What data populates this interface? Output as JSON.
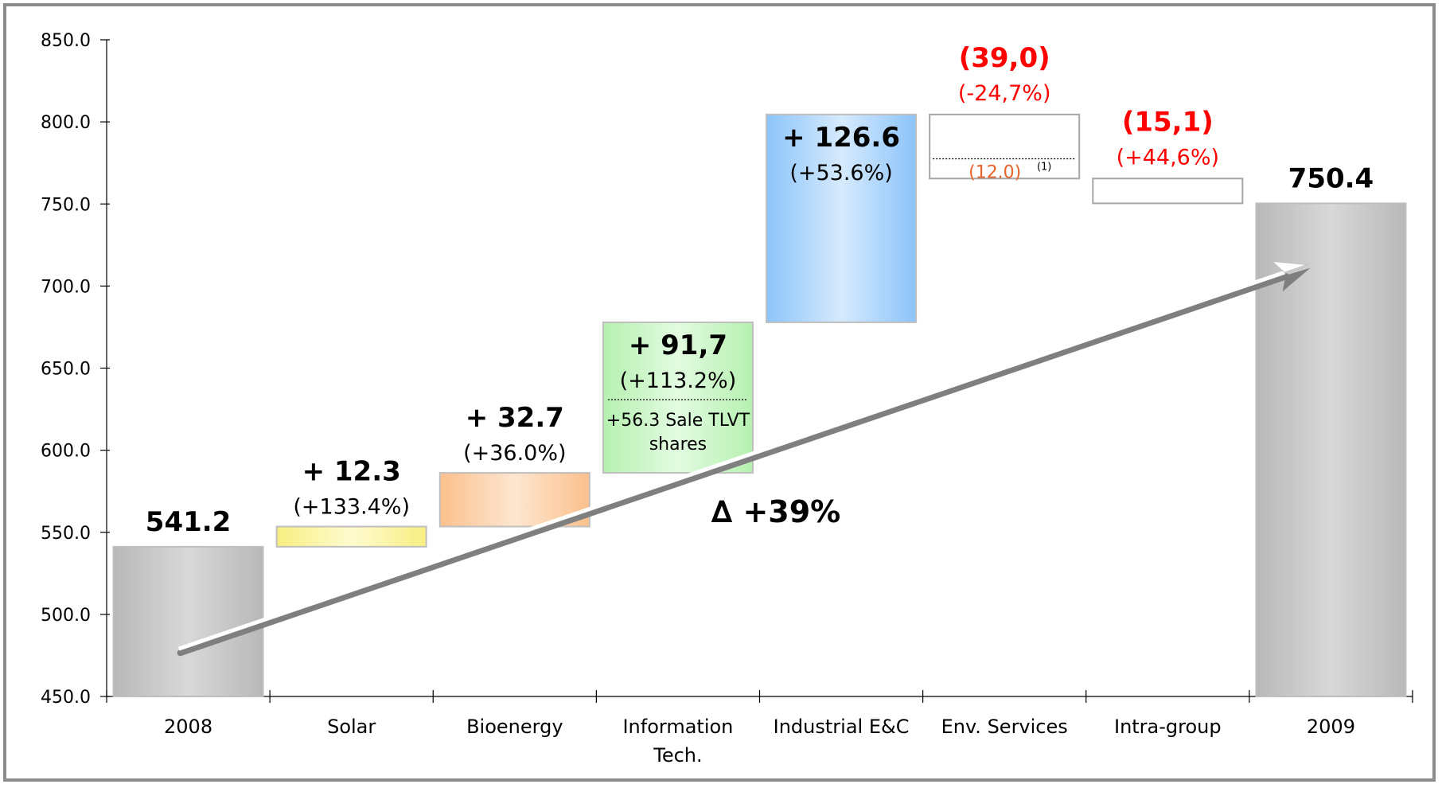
{
  "chart_data": {
    "type": "waterfall",
    "categories": [
      "2008",
      "Solar",
      "Bioenergy",
      "Information Tech.",
      "Industrial E&C",
      "Env. Services",
      "Intra-group",
      "2009"
    ],
    "category_lines": [
      [
        "2008"
      ],
      [
        "Solar"
      ],
      [
        "Bioenergy"
      ],
      [
        "Information",
        "Tech."
      ],
      [
        "Industrial E&C"
      ],
      [
        "Env. Services"
      ],
      [
        "Intra-group"
      ],
      [
        "2009"
      ]
    ],
    "bars": [
      {
        "category": "2008",
        "kind": "total",
        "start": 450.0,
        "end": 541.2,
        "label": "541.2",
        "pct": ""
      },
      {
        "category": "Solar",
        "kind": "increase",
        "start": 541.2,
        "end": 553.5,
        "label": "+ 12.3",
        "pct": "(+133.4%)"
      },
      {
        "category": "Bioenergy",
        "kind": "increase",
        "start": 553.5,
        "end": 586.2,
        "label": "+ 32.7",
        "pct": "(+36.0%)"
      },
      {
        "category": "Information Tech.",
        "kind": "increase",
        "start": 586.2,
        "end": 677.9,
        "label": "+ 91,7",
        "pct": "(+113.2%)"
      },
      {
        "category": "Industrial E&C",
        "kind": "increase",
        "start": 677.9,
        "end": 804.5,
        "label": "+ 126.6",
        "pct": "(+53.6%)"
      },
      {
        "category": "Env. Services",
        "kind": "decrease",
        "start": 804.5,
        "end": 765.5,
        "label": "(39,0)",
        "pct": "(-24,7%)"
      },
      {
        "category": "Intra-group",
        "kind": "decrease",
        "start": 765.5,
        "end": 750.4,
        "label": "(15,1)",
        "pct": "(+44,6%)"
      },
      {
        "category": "2009",
        "kind": "total",
        "start": 450.0,
        "end": 750.4,
        "label": "750.4",
        "pct": ""
      }
    ],
    "it_split_value": 630.8,
    "it_note_lines": [
      "+56.3 Sale TLVT",
      "shares"
    ],
    "env_split_value": 777.5,
    "env_note": "(12.0)",
    "env_note_sup": "(1)",
    "delta_label": "∆ +39%",
    "ylim": [
      450,
      850
    ],
    "yticks": [
      "450.0",
      "500.0",
      "550.0",
      "600.0",
      "650.0",
      "700.0",
      "750.0",
      "800.0",
      "850.0"
    ],
    "xlabel": "",
    "ylabel": "",
    "title": ""
  },
  "colors": {
    "total": "#c0c0c0",
    "solar": "#fbf5a0",
    "bioenergy": "#fbd0a8",
    "it": "#c8f5c4",
    "industrial": "#a9d2fb",
    "decrease": "#ffffff",
    "neg_text": "#ff0000",
    "note_text": "#e8632a",
    "arrow": "#7f7f7f"
  }
}
